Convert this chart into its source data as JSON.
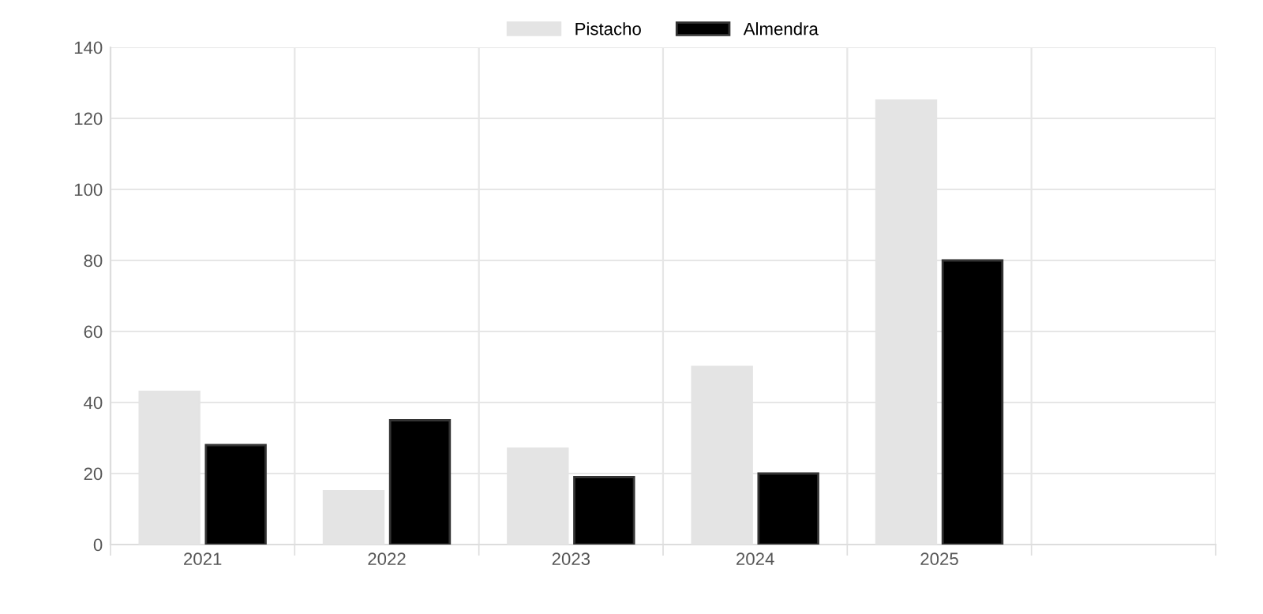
{
  "chart_data": {
    "type": "bar",
    "categories": [
      "2021",
      "2022",
      "2023",
      "2024",
      "2025",
      null
    ],
    "series": [
      {
        "name": "Pistacho",
        "color": "#e4e4e4",
        "values": [
          43,
          15,
          27,
          50,
          125,
          null
        ]
      },
      {
        "name": "Almendra",
        "color": "#000000",
        "values": [
          28,
          35,
          19,
          20,
          80,
          null
        ]
      }
    ],
    "ylim": [
      0,
      140
    ],
    "yticks": [
      0,
      20,
      40,
      60,
      80,
      100,
      120,
      140
    ],
    "grid": true,
    "legend": "top"
  }
}
